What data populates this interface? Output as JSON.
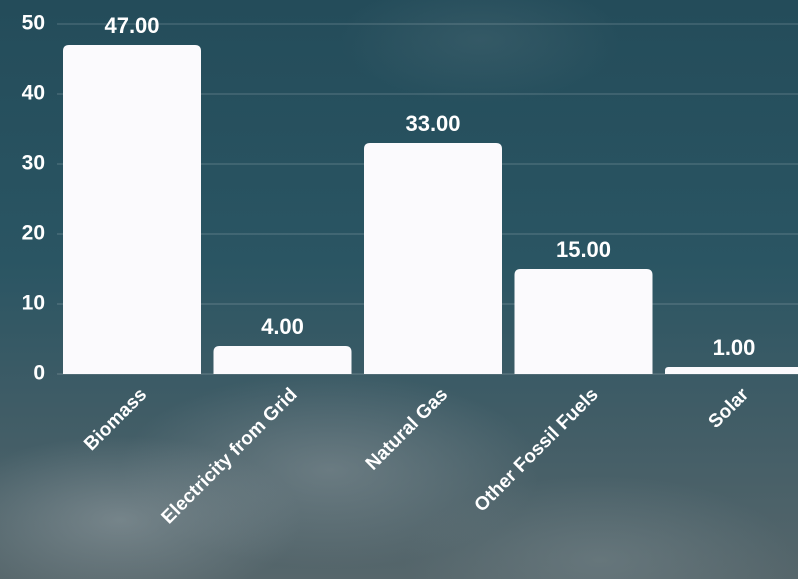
{
  "chart_data": {
    "type": "bar",
    "categories": [
      "Biomass",
      "Electricity from Grid",
      "Natural Gas",
      "Other Fossil Fuels",
      "Solar"
    ],
    "values": [
      47,
      4,
      33,
      15,
      1
    ],
    "value_labels": [
      "47.00",
      "4.00",
      "33.00",
      "15.00",
      "1.00"
    ],
    "color": "#fbfafd",
    "ylim": [
      0,
      50
    ],
    "yticks": [
      0,
      10,
      20,
      30,
      40,
      50
    ],
    "grid": true
  }
}
